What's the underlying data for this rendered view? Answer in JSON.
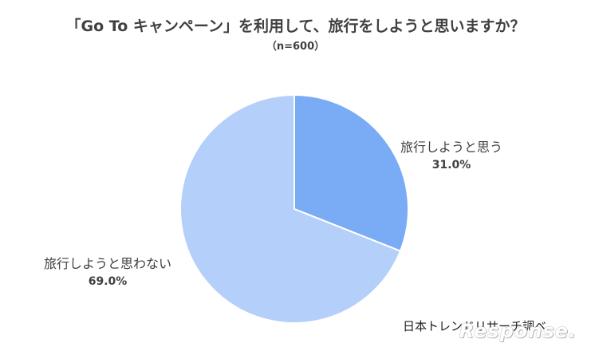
{
  "chart_data": {
    "type": "pie",
    "title": "「Go To キャンペーン」を利用して、旅行をしようと思いますか？",
    "subtitle": "（n=600）",
    "slices": [
      {
        "label": "旅行しようと思う",
        "value": 31.0,
        "value_label": "31.0%",
        "color": "#7aabf5"
      },
      {
        "label": "旅行しようと思わない",
        "value": 69.0,
        "value_label": "69.0%",
        "color": "#b4cff9"
      }
    ],
    "start": "12 o'clock",
    "direction": "clockwise",
    "legend": "none",
    "source": "日本トレンドリサーチ調べ"
  },
  "watermark": {
    "text": "Response."
  }
}
